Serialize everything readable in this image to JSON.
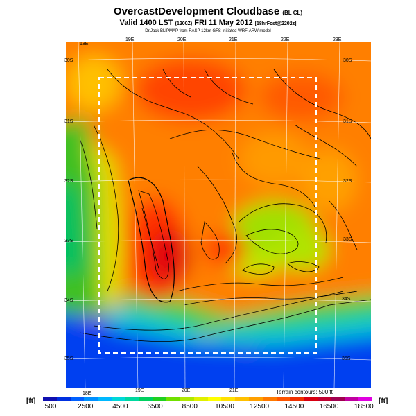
{
  "header": {
    "title": "OvercastDevelopment Cloudbase",
    "title_tag": "(BL CL)",
    "valid_line": "Valid 1400 LST",
    "valid_utc": "(1200Z)",
    "valid_date": "FRI 11 May 2012",
    "forecast": "[18hrFcst@2202z]",
    "credit": "Dr.Jack BLIPMAP from RASP 12km GFS-initiated WRF-ARW model"
  },
  "map": {
    "lon_labels_top": [
      "18E",
      "19E",
      "20E",
      "21E",
      "22E",
      "23E"
    ],
    "lon_labels_bottom": [
      "18E",
      "19E",
      "20E",
      "21E"
    ],
    "lat_labels_left": [
      "30S",
      "31S",
      "32S",
      "33S",
      "34S",
      "35S"
    ],
    "lat_labels_right": [
      "30S",
      "31S",
      "32S",
      "33S",
      "34S",
      "35S"
    ],
    "terrain_note": "Terrain contours: 500 ft"
  },
  "colorbar": {
    "unit_left": "[ft]",
    "unit_right": "[ft]",
    "ticks": [
      "500",
      "2500",
      "4500",
      "6500",
      "8500",
      "10500",
      "12500",
      "14500",
      "16500",
      "18500"
    ],
    "colors": [
      "#1010b0",
      "#0030e0",
      "#0060ff",
      "#0090ff",
      "#00b8ff",
      "#00d8d8",
      "#00d8a0",
      "#00d060",
      "#20d020",
      "#70e000",
      "#b0e800",
      "#e0f000",
      "#ffff00",
      "#ffe000",
      "#ffc000",
      "#ffa000",
      "#ff7a00",
      "#ff5500",
      "#f03000",
      "#d80010",
      "#c00030",
      "#a00050",
      "#c000a0",
      "#e000e0"
    ]
  }
}
